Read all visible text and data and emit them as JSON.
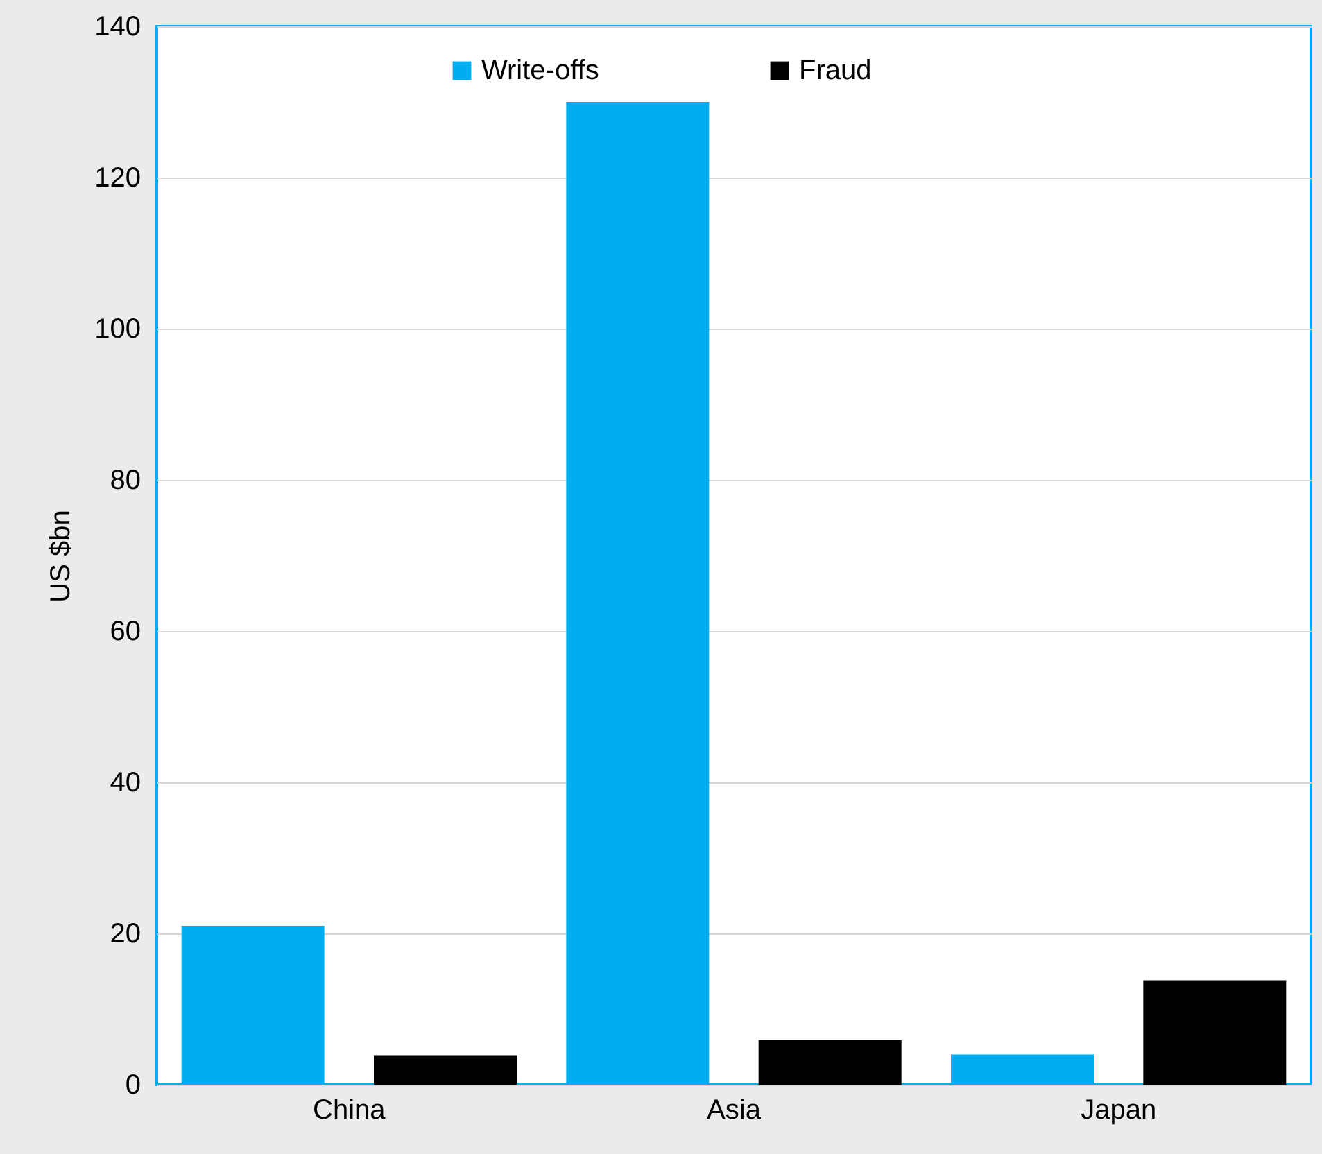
{
  "chart_data": {
    "type": "bar",
    "ylabel": "US $bn",
    "categories": [
      "China",
      "Asia",
      "Japan"
    ],
    "series": [
      {
        "name": "Write-offs",
        "color": "#00aeef",
        "values": [
          21,
          130,
          4
        ]
      },
      {
        "name": "Fraud",
        "color": "#000000",
        "values": [
          3.9,
          5.9,
          13.8
        ]
      }
    ],
    "ylim": [
      0,
      140
    ],
    "yticks": [
      0,
      20,
      40,
      60,
      80,
      100,
      120,
      140
    ],
    "grid": "y",
    "legend": "top"
  }
}
